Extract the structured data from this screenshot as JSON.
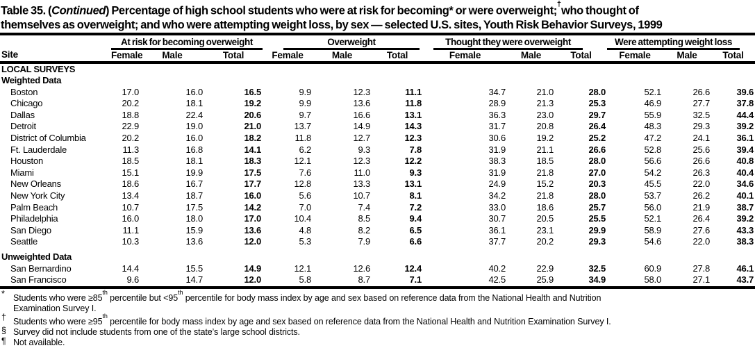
{
  "title": {
    "p1": "Table 35. (",
    "continued": "Continued",
    "p2": ") Percentage of high school students who were at risk for becoming",
    "star": "*",
    "p3": " or were overweight;",
    "dagger": "†",
    "p4a": "who thought of",
    "p4b": "themselves as overweight; and who were attempting weight loss, by sex — selected U.S. sites, Youth Risk Behavior Surveys, 1999"
  },
  "table": {
    "site_header": "Site",
    "groups": [
      {
        "label": "At risk for becoming overweight",
        "subs": [
          "Female",
          "Male",
          "Total"
        ]
      },
      {
        "label": "Overweight",
        "subs": [
          "Female",
          "Male",
          "Total"
        ]
      },
      {
        "label": "Thought they were overweight",
        "subs": [
          "Female",
          "Male",
          "Total"
        ]
      },
      {
        "label": "Were attempting weight loss",
        "subs": [
          "Female",
          "Male",
          "Total"
        ]
      }
    ],
    "rows": [
      {
        "type": "section",
        "label": "LOCAL SURVEYS"
      },
      {
        "type": "section",
        "label": "Weighted Data"
      },
      {
        "type": "data",
        "site": "Boston",
        "values": [
          "17.0",
          "16.0",
          "16.5",
          "9.9",
          "12.3",
          "11.1",
          "34.7",
          "21.0",
          "28.0",
          "52.1",
          "26.6",
          "39.6"
        ]
      },
      {
        "type": "data",
        "site": "Chicago",
        "values": [
          "20.2",
          "18.1",
          "19.2",
          "9.9",
          "13.6",
          "11.8",
          "28.9",
          "21.3",
          "25.3",
          "46.9",
          "27.7",
          "37.8"
        ]
      },
      {
        "type": "data",
        "site": "Dallas",
        "values": [
          "18.8",
          "22.4",
          "20.6",
          "9.7",
          "16.6",
          "13.1",
          "36.3",
          "23.0",
          "29.7",
          "55.9",
          "32.5",
          "44.4"
        ]
      },
      {
        "type": "data",
        "site": "Detroit",
        "values": [
          "22.9",
          "19.0",
          "21.0",
          "13.7",
          "14.9",
          "14.3",
          "31.7",
          "20.8",
          "26.4",
          "48.3",
          "29.3",
          "39.2"
        ]
      },
      {
        "type": "data",
        "site": "District of Columbia",
        "values": [
          "20.2",
          "16.0",
          "18.2",
          "11.8",
          "12.7",
          "12.3",
          "30.6",
          "19.2",
          "25.2",
          "47.2",
          "24.1",
          "36.1"
        ]
      },
      {
        "type": "data",
        "site": "Ft. Lauderdale",
        "values": [
          "11.3",
          "16.8",
          "14.1",
          "6.2",
          "9.3",
          "7.8",
          "31.9",
          "21.1",
          "26.6",
          "52.8",
          "25.6",
          "39.4"
        ]
      },
      {
        "type": "data",
        "site": "Houston",
        "values": [
          "18.5",
          "18.1",
          "18.3",
          "12.1",
          "12.3",
          "12.2",
          "38.3",
          "18.5",
          "28.0",
          "56.6",
          "26.6",
          "40.8"
        ]
      },
      {
        "type": "data",
        "site": "Miami",
        "values": [
          "15.1",
          "19.9",
          "17.5",
          "7.6",
          "11.0",
          "9.3",
          "31.9",
          "21.8",
          "27.0",
          "54.2",
          "26.3",
          "40.4"
        ]
      },
      {
        "type": "data",
        "site": "New Orleans",
        "values": [
          "18.6",
          "16.7",
          "17.7",
          "12.8",
          "13.3",
          "13.1",
          "24.9",
          "15.2",
          "20.3",
          "45.5",
          "22.0",
          "34.6"
        ]
      },
      {
        "type": "data",
        "site": "New York City",
        "values": [
          "13.4",
          "18.7",
          "16.0",
          "5.6",
          "10.7",
          "8.1",
          "34.2",
          "21.8",
          "28.0",
          "53.7",
          "26.2",
          "40.1"
        ]
      },
      {
        "type": "data",
        "site": "Palm Beach",
        "values": [
          "10.7",
          "17.5",
          "14.2",
          "7.0",
          "7.4",
          "7.2",
          "33.0",
          "18.6",
          "25.7",
          "56.0",
          "21.9",
          "38.7"
        ]
      },
      {
        "type": "data",
        "site": "Philadelphia",
        "values": [
          "16.0",
          "18.0",
          "17.0",
          "10.4",
          "8.5",
          "9.4",
          "30.7",
          "20.5",
          "25.5",
          "52.1",
          "26.4",
          "39.2"
        ]
      },
      {
        "type": "data",
        "site": "San Diego",
        "values": [
          "11.1",
          "15.9",
          "13.6",
          "4.8",
          "8.2",
          "6.5",
          "36.1",
          "23.1",
          "29.9",
          "58.9",
          "27.6",
          "43.3"
        ]
      },
      {
        "type": "data",
        "site": "Seattle",
        "values": [
          "10.3",
          "13.6",
          "12.0",
          "5.3",
          "7.9",
          "6.6",
          "37.7",
          "20.2",
          "29.3",
          "54.6",
          "22.0",
          "38.3"
        ]
      },
      {
        "type": "section",
        "label": "Unweighted Data",
        "spaced": true
      },
      {
        "type": "data",
        "site": "San Bernardino",
        "values": [
          "14.4",
          "15.5",
          "14.9",
          "12.1",
          "12.6",
          "12.4",
          "40.2",
          "22.9",
          "32.5",
          "60.9",
          "27.8",
          "46.1"
        ]
      },
      {
        "type": "data",
        "site": "San Francisco",
        "values": [
          "9.6",
          "14.7",
          "12.0",
          "5.8",
          "8.7",
          "7.1",
          "42.5",
          "25.9",
          "34.9",
          "58.0",
          "27.1",
          "43.7"
        ]
      }
    ]
  },
  "footnotes": {
    "fn1": {
      "symbol": "*",
      "a": "Students who were ≥85",
      "sup1": "th",
      "b": " percentile but <95",
      "sup2": "th",
      "c": " percentile for body mass index by age and sex based on reference data from the National Health and Nutrition",
      "cont": "Examination Survey I."
    },
    "fn2": {
      "symbol": "†",
      "a": "Students who were ≥95",
      "sup1": "th",
      "b": " percentile for body mass index by age and sex based on reference data from the National Health and Nutrition Examination Survey I."
    },
    "fn3": {
      "symbol": "§",
      "text": "Survey did not include students from one of the state’s large school districts."
    },
    "fn4": {
      "symbol": "¶",
      "text": "Not available."
    }
  }
}
